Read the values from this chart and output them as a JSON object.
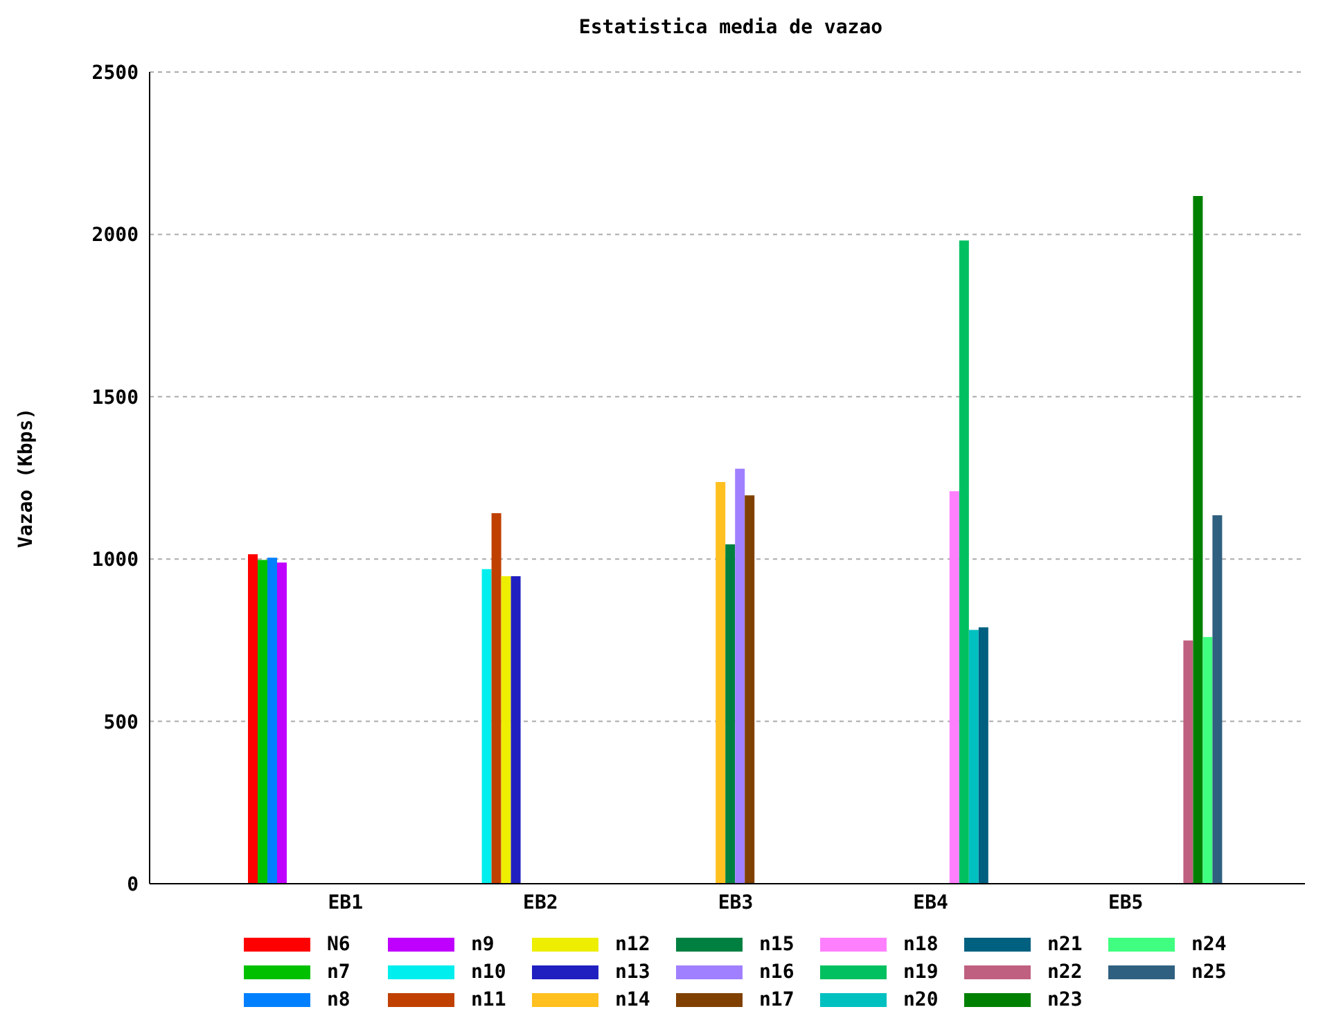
{
  "chart_data": {
    "type": "bar",
    "title": "Estatistica media de vazao",
    "ylabel": "Vazao (Kbps)",
    "categories": [
      "EB1",
      "EB2",
      "EB3",
      "EB4",
      "EB5"
    ],
    "series": [
      {
        "name": "N6",
        "color": "#ff0000",
        "values": [
          1015,
          null,
          null,
          null,
          null
        ]
      },
      {
        "name": "n7",
        "color": "#00c000",
        "values": [
          997,
          null,
          null,
          null,
          null
        ]
      },
      {
        "name": "n8",
        "color": "#0080ff",
        "values": [
          1004,
          null,
          null,
          null,
          null
        ]
      },
      {
        "name": "n9",
        "color": "#c000ff",
        "values": [
          989,
          null,
          null,
          null,
          null
        ]
      },
      {
        "name": "n10",
        "color": "#00eeee",
        "values": [
          null,
          969,
          null,
          null,
          null
        ]
      },
      {
        "name": "n11",
        "color": "#c04000",
        "values": [
          null,
          1141,
          null,
          null,
          null
        ]
      },
      {
        "name": "n12",
        "color": "#eeee00",
        "values": [
          null,
          947,
          null,
          null,
          null
        ]
      },
      {
        "name": "n13",
        "color": "#2020c0",
        "values": [
          null,
          947,
          null,
          null,
          null
        ]
      },
      {
        "name": "n14",
        "color": "#ffc020",
        "values": [
          null,
          null,
          1237,
          null,
          null
        ]
      },
      {
        "name": "n15",
        "color": "#008040",
        "values": [
          null,
          null,
          1045,
          null,
          null
        ]
      },
      {
        "name": "n16",
        "color": "#a080ff",
        "values": [
          null,
          null,
          1278,
          null,
          null
        ]
      },
      {
        "name": "n17",
        "color": "#804000",
        "values": [
          null,
          null,
          1196,
          null,
          null
        ]
      },
      {
        "name": "n18",
        "color": "#ff80ff",
        "values": [
          null,
          null,
          null,
          1209,
          null
        ]
      },
      {
        "name": "n19",
        "color": "#00c060",
        "values": [
          null,
          null,
          null,
          1981,
          null
        ]
      },
      {
        "name": "n20",
        "color": "#00c0c0",
        "values": [
          null,
          null,
          null,
          782,
          null
        ]
      },
      {
        "name": "n21",
        "color": "#006080",
        "values": [
          null,
          null,
          null,
          790,
          null
        ]
      },
      {
        "name": "n22",
        "color": "#c06080",
        "values": [
          null,
          null,
          null,
          null,
          749
        ]
      },
      {
        "name": "n23",
        "color": "#008000",
        "values": [
          null,
          null,
          null,
          null,
          2118
        ]
      },
      {
        "name": "n24",
        "color": "#40ff80",
        "values": [
          null,
          null,
          null,
          null,
          760
        ]
      },
      {
        "name": "n25",
        "color": "#306080",
        "values": [
          null,
          null,
          null,
          null,
          1135
        ]
      }
    ],
    "ylim": [
      0,
      2500
    ],
    "yticks": [
      0,
      500,
      1000,
      1500,
      2000,
      2500
    ],
    "grid": "y",
    "legend": "bottom"
  }
}
